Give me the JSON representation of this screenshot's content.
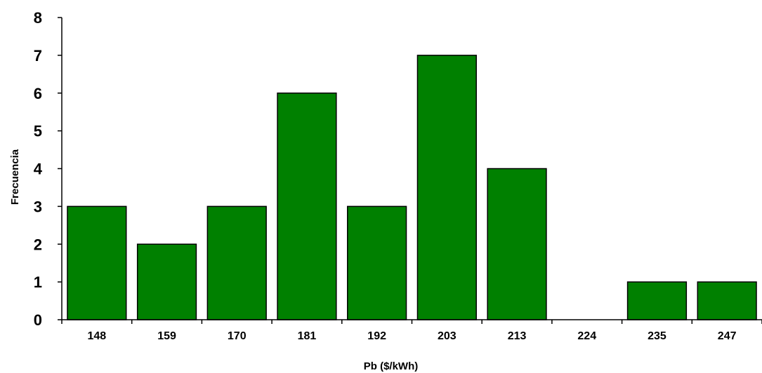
{
  "chart_data": {
    "type": "bar",
    "categories": [
      "148",
      "159",
      "170",
      "181",
      "192",
      "203",
      "213",
      "224",
      "235",
      "247"
    ],
    "values": [
      3,
      2,
      3,
      6,
      3,
      7,
      4,
      0,
      1,
      1
    ],
    "xlabel": "Pb ($/kWh)",
    "ylabel": "Frecuencia",
    "ylim": [
      0,
      8
    ],
    "yticks": [
      "0",
      "1",
      "2",
      "3",
      "4",
      "5",
      "6",
      "7",
      "8"
    ],
    "bar_color": "#008000",
    "bar_edge_color": "#000000",
    "grid": false,
    "legend": "none"
  }
}
